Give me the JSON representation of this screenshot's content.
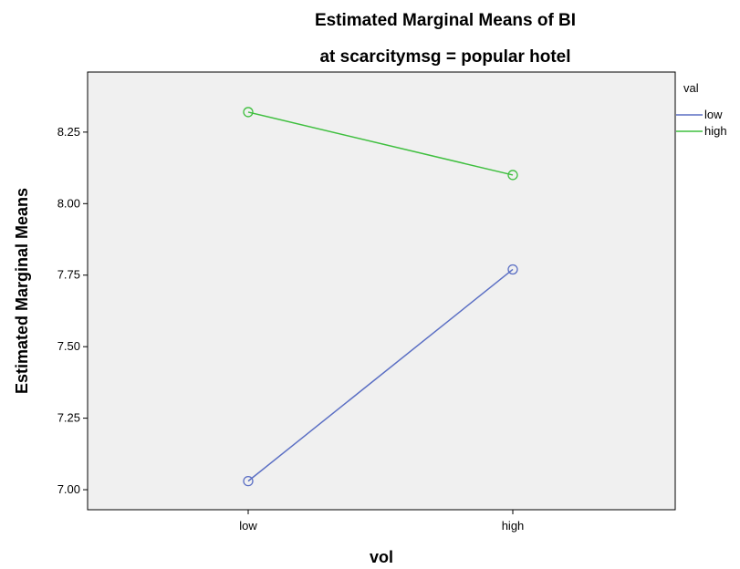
{
  "chart_data": {
    "type": "line",
    "title": "Estimated Marginal Means of BI",
    "subtitle": "at scarcitymsg = popular hotel",
    "xlabel": "vol",
    "ylabel": "Estimated Marginal Means",
    "categories": [
      "low",
      "high"
    ],
    "ylim": [
      6.93,
      8.46
    ],
    "yticks": [
      7.0,
      7.25,
      7.5,
      7.75,
      8.0,
      8.25
    ],
    "ytick_labels": [
      "7.00",
      "7.25",
      "7.50",
      "7.75",
      "8.00",
      "8.25"
    ],
    "grid": false,
    "legend": {
      "title": "val",
      "placement": "right"
    },
    "series": [
      {
        "name": "low",
        "color": "#5b6fc4",
        "values": [
          7.03,
          7.77
        ]
      },
      {
        "name": "high",
        "color": "#3fbf3f",
        "values": [
          8.32,
          8.1
        ]
      }
    ]
  },
  "colors": {
    "plot_background": "#f0f0f0",
    "axis": "#000000"
  }
}
